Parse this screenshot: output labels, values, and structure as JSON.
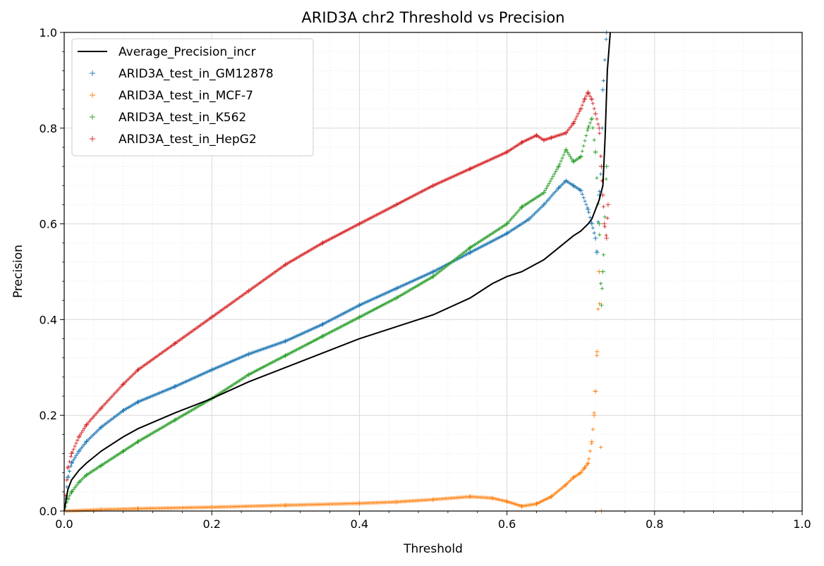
{
  "chart_data": {
    "type": "scatter",
    "title": "ARID3A chr2 Threshold vs Precision",
    "xlabel": "Threshold",
    "ylabel": "Precision",
    "xlim": [
      0.0,
      1.0
    ],
    "ylim": [
      0.0,
      1.0
    ],
    "x_ticks": [
      "0.0",
      "0.2",
      "0.4",
      "0.6",
      "0.8",
      "1.0"
    ],
    "y_ticks": [
      "0.0",
      "0.2",
      "0.4",
      "0.6",
      "0.8",
      "1.0"
    ],
    "grid": true,
    "minor_grid": true,
    "legend_position": "upper-left",
    "series": [
      {
        "name": "Average_Precision_incr",
        "kind": "line",
        "color": "#000000",
        "x": [
          0.0,
          0.005,
          0.01,
          0.02,
          0.03,
          0.05,
          0.08,
          0.1,
          0.15,
          0.2,
          0.25,
          0.3,
          0.35,
          0.4,
          0.45,
          0.5,
          0.55,
          0.58,
          0.6,
          0.62,
          0.65,
          0.67,
          0.69,
          0.7,
          0.71,
          0.715,
          0.72,
          0.725,
          0.73,
          0.733,
          0.736,
          0.74
        ],
        "y": [
          0.0,
          0.045,
          0.065,
          0.085,
          0.1,
          0.125,
          0.155,
          0.172,
          0.205,
          0.235,
          0.27,
          0.3,
          0.33,
          0.36,
          0.385,
          0.41,
          0.445,
          0.475,
          0.49,
          0.5,
          0.525,
          0.55,
          0.575,
          0.585,
          0.6,
          0.61,
          0.63,
          0.65,
          0.68,
          0.78,
          0.92,
          1.0
        ]
      },
      {
        "name": "ARID3A_test_in_GM12878",
        "kind": "scatter",
        "color": "#1f77b4",
        "x": [
          0.0,
          0.005,
          0.01,
          0.02,
          0.03,
          0.05,
          0.08,
          0.1,
          0.15,
          0.2,
          0.25,
          0.3,
          0.35,
          0.4,
          0.45,
          0.5,
          0.55,
          0.6,
          0.63,
          0.65,
          0.67,
          0.68,
          0.69,
          0.7,
          0.71,
          0.715,
          0.72,
          0.722,
          0.725,
          0.728,
          0.73,
          0.735
        ],
        "y": [
          0.0,
          0.07,
          0.1,
          0.125,
          0.145,
          0.175,
          0.21,
          0.228,
          0.26,
          0.295,
          0.328,
          0.355,
          0.39,
          0.43,
          0.465,
          0.5,
          0.54,
          0.58,
          0.61,
          0.64,
          0.675,
          0.69,
          0.68,
          0.67,
          0.63,
          0.6,
          0.57,
          0.54,
          0.66,
          0.72,
          0.88,
          1.0
        ]
      },
      {
        "name": "ARID3A_test_in_MCF-7",
        "kind": "scatter",
        "color": "#ff7f0e",
        "x": [
          0.0,
          0.05,
          0.1,
          0.2,
          0.3,
          0.4,
          0.45,
          0.5,
          0.55,
          0.58,
          0.6,
          0.62,
          0.64,
          0.66,
          0.68,
          0.69,
          0.7,
          0.705,
          0.71,
          0.715,
          0.718,
          0.72,
          0.722,
          0.725,
          0.728
        ],
        "y": [
          0.0,
          0.003,
          0.005,
          0.008,
          0.012,
          0.016,
          0.019,
          0.024,
          0.03,
          0.027,
          0.02,
          0.01,
          0.015,
          0.03,
          0.055,
          0.07,
          0.08,
          0.09,
          0.1,
          0.145,
          0.2,
          0.25,
          0.333,
          0.5,
          0.0
        ]
      },
      {
        "name": "ARID3A_test_in_K562",
        "kind": "scatter",
        "color": "#2ca02c",
        "x": [
          0.0,
          0.005,
          0.01,
          0.02,
          0.03,
          0.05,
          0.08,
          0.1,
          0.15,
          0.2,
          0.25,
          0.3,
          0.35,
          0.4,
          0.45,
          0.5,
          0.55,
          0.6,
          0.62,
          0.65,
          0.67,
          0.68,
          0.69,
          0.7,
          0.71,
          0.715,
          0.72,
          0.725,
          0.728,
          0.73,
          0.735
        ],
        "y": [
          0.0,
          0.025,
          0.04,
          0.06,
          0.075,
          0.095,
          0.125,
          0.145,
          0.19,
          0.235,
          0.285,
          0.325,
          0.365,
          0.405,
          0.445,
          0.49,
          0.55,
          0.6,
          0.635,
          0.665,
          0.72,
          0.755,
          0.73,
          0.74,
          0.8,
          0.82,
          0.75,
          0.6,
          0.43,
          0.5,
          0.72
        ]
      },
      {
        "name": "ARID3A_test_in_HepG2",
        "kind": "scatter",
        "color": "#d62728",
        "x": [
          0.0,
          0.005,
          0.01,
          0.02,
          0.03,
          0.05,
          0.08,
          0.1,
          0.15,
          0.2,
          0.25,
          0.3,
          0.35,
          0.4,
          0.45,
          0.5,
          0.55,
          0.6,
          0.62,
          0.64,
          0.65,
          0.66,
          0.68,
          0.69,
          0.7,
          0.705,
          0.71,
          0.715,
          0.72,
          0.725,
          0.728,
          0.73,
          0.732,
          0.735,
          0.737
        ],
        "y": [
          0.0,
          0.09,
          0.12,
          0.155,
          0.18,
          0.215,
          0.265,
          0.295,
          0.35,
          0.405,
          0.46,
          0.515,
          0.56,
          0.6,
          0.64,
          0.68,
          0.715,
          0.75,
          0.77,
          0.785,
          0.775,
          0.78,
          0.79,
          0.81,
          0.84,
          0.86,
          0.875,
          0.86,
          0.83,
          0.8,
          0.72,
          0.66,
          0.6,
          0.57,
          0.64
        ]
      }
    ]
  }
}
